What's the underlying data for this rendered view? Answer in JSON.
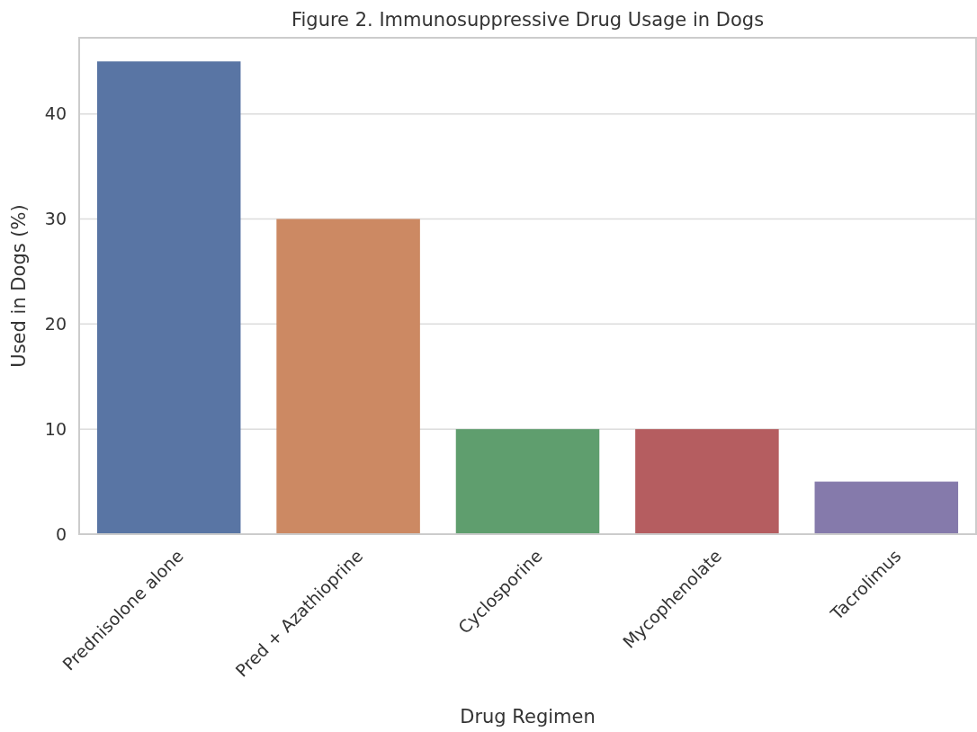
{
  "chart_data": {
    "type": "bar",
    "title": "Figure 2. Immunosuppressive Drug Usage in Dogs",
    "xlabel": "Drug Regimen",
    "ylabel": "Used in Dogs (%)",
    "categories": [
      "Prednisolone alone",
      "Pred + Azathioprine",
      "Cyclosporine",
      "Mycophenolate",
      "Tacrolimus"
    ],
    "values": [
      45,
      30,
      10,
      10,
      5
    ],
    "colors": [
      "#5975a4",
      "#cc8963",
      "#5f9e6e",
      "#b55d60",
      "#857aab"
    ],
    "ylim": [
      0,
      47.25
    ],
    "yticks": [
      0,
      10,
      20,
      30,
      40
    ],
    "grid": "y"
  }
}
